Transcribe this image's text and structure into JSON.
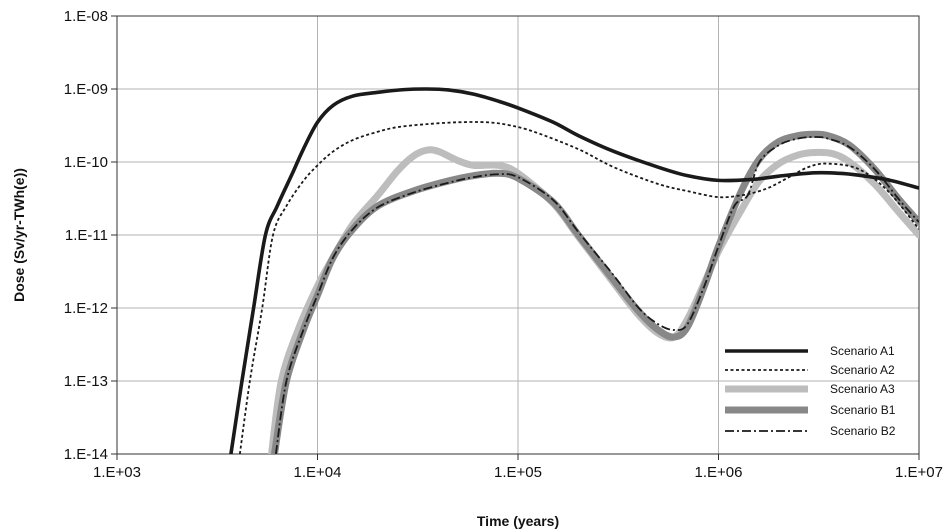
{
  "chart_data": {
    "type": "line",
    "title": "",
    "xlabel": "Time (years)",
    "ylabel": "Dose (Sv/yr-TWh(e))",
    "x_scale": "log",
    "y_scale": "log",
    "xlim": [
      1000,
      10000000
    ],
    "ylim": [
      1e-14,
      1e-08
    ],
    "x_tick_values": [
      1000,
      10000,
      100000,
      1000000,
      10000000
    ],
    "x_tick_labels": [
      "1.E+03",
      "1.E+04",
      "1.E+05",
      "1.E+06",
      "1.E+07"
    ],
    "y_tick_values": [
      1e-08,
      1e-09,
      1e-10,
      1e-11,
      1e-12,
      1e-13,
      1e-14
    ],
    "y_tick_labels": [
      "1.E-08",
      "1.E-09",
      "1.E-10",
      "1.E-11",
      "1.E-12",
      "1.E-13",
      "1.E-14"
    ],
    "grid": true,
    "legend_position": "bottom-right",
    "series": [
      {
        "name": "Scenario A1",
        "color": "#1a1a1a",
        "style": "solid-thick",
        "x": [
          3700,
          4200,
          4800,
          5500,
          6300,
          7500,
          8500,
          10000,
          12000,
          15000,
          20000,
          27000,
          35000,
          45000,
          60000,
          80000,
          100000,
          150000,
          200000,
          300000,
          500000,
          700000,
          1000000,
          1500000,
          2000000,
          3000000,
          4000000,
          5000000,
          7000000,
          10000000
        ],
        "y": [
          1e-14,
          1e-13,
          1e-12,
          1e-11,
          2.5e-11,
          7e-11,
          1.5e-10,
          3.5e-10,
          6e-10,
          8e-10,
          9e-10,
          9.8e-10,
          1e-09,
          9.7e-10,
          8.5e-10,
          6.8e-10,
          5.5e-10,
          3.5e-10,
          2.3e-10,
          1.4e-10,
          8.5e-11,
          6.5e-11,
          5.6e-11,
          5.8e-11,
          6.4e-11,
          7.1e-11,
          7e-11,
          6.6e-11,
          5.7e-11,
          4.4e-11
        ]
      },
      {
        "name": "Scenario A2",
        "color": "#1a1a1a",
        "style": "dotted",
        "x": [
          4100,
          4600,
          5300,
          6000,
          7000,
          8500,
          10000,
          12000,
          15000,
          20000,
          25000,
          35000,
          50000,
          70000,
          90000,
          120000,
          200000,
          300000,
          500000,
          700000,
          1000000,
          1300000,
          1500000,
          1800000,
          2200000,
          2800000,
          3500000,
          5000000,
          7000000,
          10000000
        ],
        "y": [
          1e-14,
          1e-13,
          1e-12,
          1e-11,
          2.5e-11,
          5.5e-11,
          9e-11,
          1.4e-10,
          2e-10,
          2.6e-10,
          3e-10,
          3.3e-10,
          3.5e-10,
          3.5e-10,
          3.2e-10,
          2.6e-10,
          1.5e-10,
          8.5e-11,
          5e-11,
          4e-11,
          3.3e-11,
          3.5e-11,
          3.8e-11,
          4.5e-11,
          6e-11,
          8.5e-11,
          9.5e-11,
          8e-11,
          4e-11,
          1.2e-11
        ]
      },
      {
        "name": "Scenario A3",
        "color": "#bdbdbd",
        "style": "solid-wide",
        "x": [
          5900,
          6600,
          8000,
          10000,
          12000,
          15000,
          20000,
          25000,
          30000,
          35000,
          40000,
          50000,
          60000,
          80000,
          100000,
          150000,
          200000,
          300000,
          400000,
          500000,
          600000,
          700000,
          850000,
          1000000,
          1300000,
          1600000,
          2000000,
          2500000,
          3000000,
          3700000,
          4500000,
          6000000,
          8000000,
          10000000
        ],
        "y": [
          1e-14,
          1e-13,
          5e-13,
          2e-12,
          5e-12,
          1.4e-11,
          3.5e-11,
          7.5e-11,
          1.2e-10,
          1.45e-10,
          1.4e-10,
          1.05e-10,
          9e-11,
          9e-11,
          7e-11,
          2.7e-11,
          9.5e-12,
          2.2e-12,
          8e-13,
          4.5e-13,
          4e-13,
          7e-13,
          2.2e-12,
          6e-12,
          2.2e-11,
          5.5e-11,
          9.5e-11,
          1.25e-10,
          1.35e-10,
          1.3e-10,
          1e-10,
          5e-11,
          2e-11,
          1e-11
        ]
      },
      {
        "name": "Scenario B1",
        "color": "#888888",
        "style": "solid-wide",
        "x": [
          6100,
          7000,
          8500,
          10000,
          12000,
          15000,
          20000,
          30000,
          45000,
          60000,
          80000,
          100000,
          150000,
          200000,
          300000,
          400000,
          500000,
          600000,
          700000,
          850000,
          1000000,
          1300000,
          1600000,
          2000000,
          2500000,
          3000000,
          3500000,
          4500000,
          6000000,
          8000000,
          10000000
        ],
        "y": [
          1e-14,
          1e-13,
          5e-13,
          1.5e-12,
          5e-12,
          1.2e-11,
          2.5e-11,
          4e-11,
          5.5e-11,
          6.5e-11,
          7e-11,
          6e-11,
          2.8e-11,
          1e-11,
          2.4e-12,
          9e-13,
          5e-13,
          4e-13,
          5.5e-13,
          2e-12,
          7e-12,
          4e-11,
          1.1e-10,
          1.9e-10,
          2.3e-10,
          2.4e-10,
          2.3e-10,
          1.7e-10,
          8e-11,
          3e-11,
          1.5e-11
        ]
      },
      {
        "name": "Scenario B2",
        "color": "#1a1a1a",
        "style": "dash-dot",
        "x": [
          6200,
          7000,
          8500,
          10000,
          12000,
          15000,
          20000,
          30000,
          45000,
          60000,
          80000,
          100000,
          150000,
          200000,
          300000,
          400000,
          500000,
          600000,
          700000,
          850000,
          1000000,
          1200000,
          1400000,
          1600000,
          2000000,
          2500000,
          3000000,
          3500000,
          4500000,
          6000000,
          8000000,
          10000000
        ],
        "y": [
          1e-14,
          1e-13,
          5e-13,
          1.5e-12,
          5e-12,
          1.2e-11,
          2.4e-11,
          3.8e-11,
          5.2e-11,
          6.2e-11,
          6.8e-11,
          6.2e-11,
          3e-11,
          1.1e-11,
          2.8e-12,
          1e-12,
          6e-13,
          5e-13,
          6e-13,
          2e-12,
          7e-12,
          2.5e-11,
          3.5e-11,
          1e-10,
          1.7e-10,
          2.1e-10,
          2.2e-10,
          2.1e-10,
          1.6e-10,
          8e-11,
          3e-11,
          1.5e-11
        ]
      }
    ]
  }
}
